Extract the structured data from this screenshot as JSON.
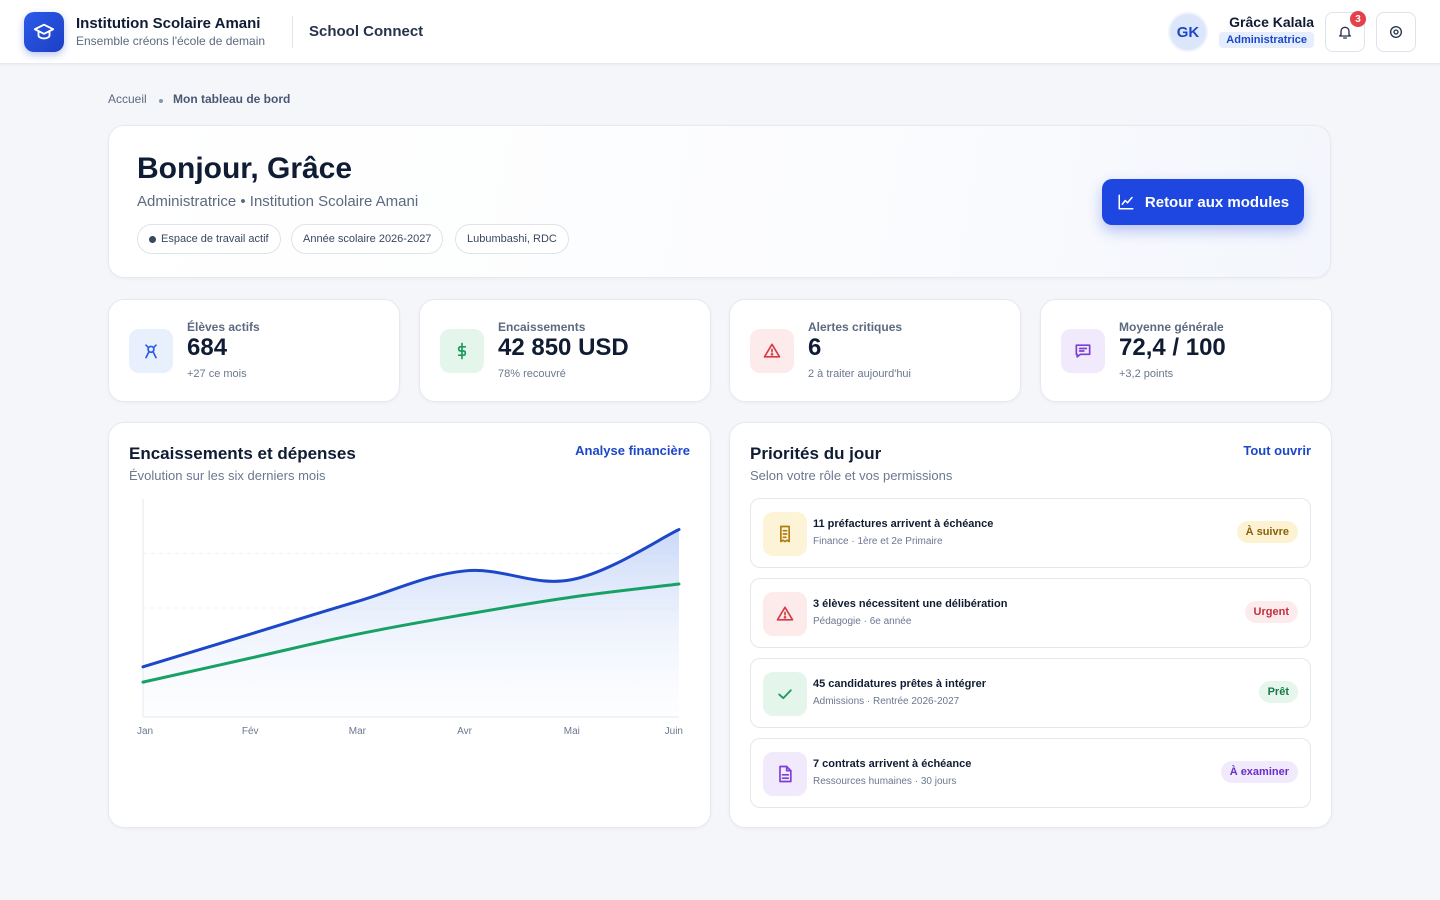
{
  "header": {
    "institution_name": "Institution Scolaire Amani",
    "tagline": "Ensemble créons l'école de demain",
    "app_name": "School Connect",
    "user_initials": "GK",
    "user_name": "Grâce Kalala",
    "user_role": "Administratrice",
    "notification_count": "3",
    "icons": [
      "graduation-cap-icon",
      "bell-icon",
      "settings-icon"
    ]
  },
  "breadcrumb": {
    "home": "Accueil",
    "current": "Mon tableau de bord"
  },
  "hero": {
    "title": "Bonjour, Grâce",
    "subtitle": "Administratrice • Institution Scolaire Amani",
    "chips": [
      "Espace de travail actif",
      "Année scolaire 2026-2027",
      "Lubumbashi, RDC"
    ],
    "cta_label": "Retour aux modules"
  },
  "stats": [
    {
      "label": "Élèves actifs",
      "value": "684",
      "note": "+27 ce mois",
      "icon": "student-icon",
      "color": "#2c5be8"
    },
    {
      "label": "Encaissements",
      "value": "42 850 USD",
      "note": "78% recouvré",
      "icon": "dollar-icon",
      "color": "#1c9a5c"
    },
    {
      "label": "Alertes critiques",
      "value": "6",
      "note": "2 à traiter aujourd'hui",
      "icon": "alert-icon",
      "color": "#d63b45"
    },
    {
      "label": "Moyenne générale",
      "value": "72,4 / 100",
      "note": "+3,2 points",
      "icon": "report-icon",
      "color": "#7b3fd6"
    }
  ],
  "finance_panel": {
    "title": "Encaissements et dépenses",
    "subtitle": "Évolution sur les six derniers mois",
    "link": "Analyse financière"
  },
  "chart_data": {
    "type": "area",
    "categories": [
      "Jan",
      "Fév",
      "Mar",
      "Avr",
      "Mai",
      "Juin"
    ],
    "ylim": [
      0,
      100
    ],
    "grid": true,
    "series": [
      {
        "values": [
          23,
          38,
          53,
          67,
          63,
          86
        ],
        "color": "#1d47c9"
      },
      {
        "values": [
          16,
          27,
          38,
          47,
          55,
          61
        ],
        "color": "#17a165"
      }
    ]
  },
  "priorities_panel": {
    "title": "Priorités du jour",
    "subtitle": "Selon votre rôle et vos permissions",
    "link": "Tout ouvrir",
    "items": [
      {
        "title": "11 préfactures arrivent à échéance",
        "sub": "Finance · 1ère et 2e Primaire",
        "badge": "À suivre",
        "icon": "invoice-icon"
      },
      {
        "title": "3 élèves nécessitent une délibération",
        "sub": "Pédagogie · 6e année",
        "badge": "Urgent",
        "icon": "alert-icon"
      },
      {
        "title": "45 candidatures prêtes à intégrer",
        "sub": "Admissions · Rentrée 2026-2027",
        "badge": "Prêt",
        "icon": "check-icon"
      },
      {
        "title": "7 contrats arrivent à échéance",
        "sub": "Ressources humaines · 30 jours",
        "badge": "À examiner",
        "icon": "document-icon"
      }
    ]
  }
}
